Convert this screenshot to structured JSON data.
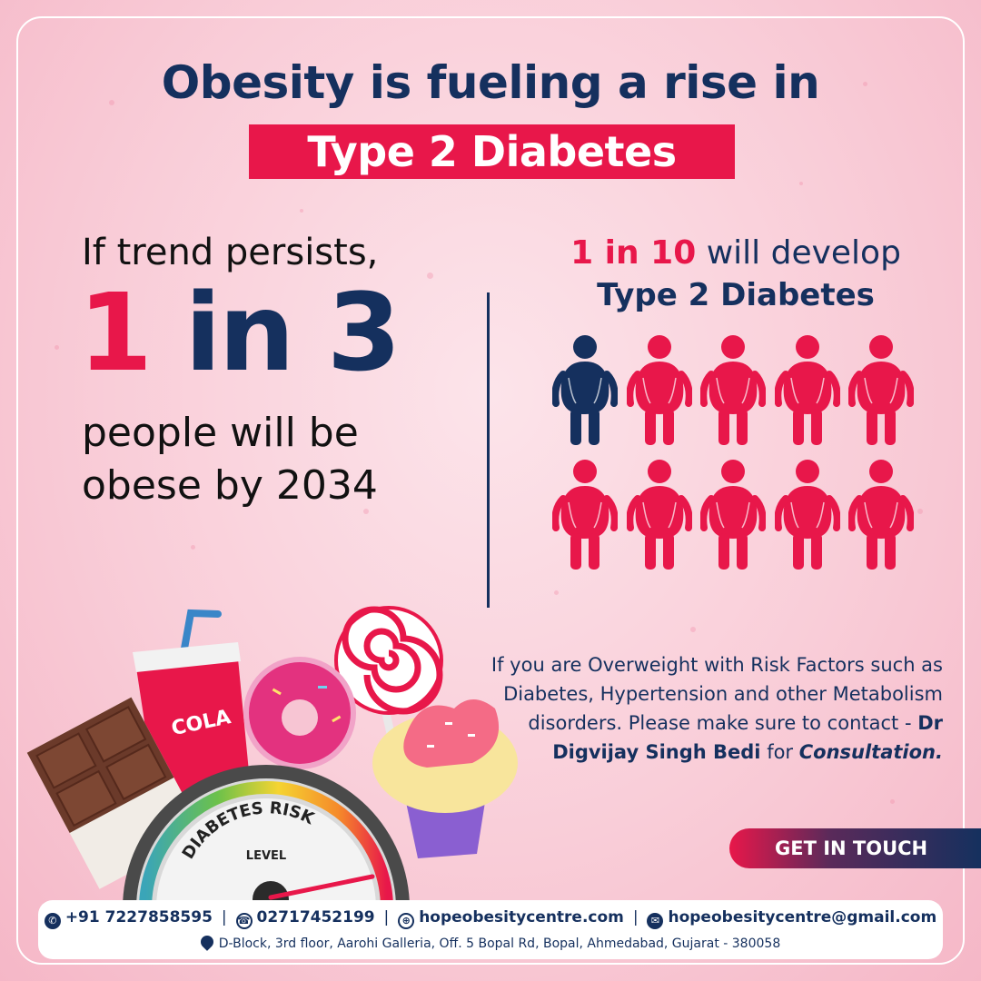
{
  "header": {
    "title_line1": "Obesity is fueling a rise in",
    "title_line2": "Type 2 Diabetes"
  },
  "left": {
    "intro": "If trend persists,",
    "stat_num": "1",
    "stat_rest": " in 3",
    "line1": "people will be",
    "line2": "obese by 2034"
  },
  "right": {
    "stat_red": "1 in 10",
    "stat_rest": " will develop",
    "line2": "Type 2 Diabetes",
    "people_highlighted": 1,
    "people_total": 10
  },
  "colors": {
    "navy": "#15305e",
    "red": "#e8174a"
  },
  "illustration": {
    "cola_label": "COLA",
    "gauge_title": "DIABETES RISK",
    "gauge_sub": "LEVEL"
  },
  "message": {
    "text": "If you are Overweight with Risk Factors such as Diabetes, Hypertension and other Metabolism  disorders. Please make sure to contact - ",
    "doctor": "Dr Digvijay Singh Bedi",
    "for": " for ",
    "consult": "Consultation."
  },
  "cta": {
    "label": "GET IN TOUCH"
  },
  "footer": {
    "phone": "+91 7227858595",
    "landline": "02717452199",
    "website": "hopeobesitycentre.com",
    "email": "hopeobesitycentre@gmail.com",
    "address": "D-Block, 3rd floor, Aarohi Galleria, Off. 5 Bopal Rd, Bopal, Ahmedabad, Gujarat - 380058"
  }
}
